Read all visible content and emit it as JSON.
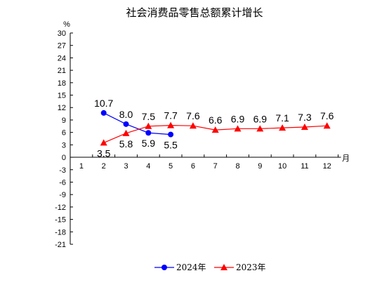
{
  "chart_data": {
    "type": "line",
    "title": "社会消费品零售总额累计增长",
    "ylabel": "%",
    "xlabel": "月",
    "ylim": [
      -21,
      30
    ],
    "y_ticks": [
      "30",
      "27",
      "24",
      "21",
      "18",
      "15",
      "12",
      "9",
      "6",
      "3",
      "0",
      "-3",
      "-6",
      "-9",
      "-12",
      "-15",
      "-18",
      "-21"
    ],
    "categories": [
      "1",
      "2",
      "3",
      "4",
      "5",
      "6",
      "7",
      "8",
      "9",
      "10",
      "11",
      "12"
    ],
    "grid": false,
    "legend_position": "bottom",
    "series": [
      {
        "name": "2024年",
        "color": "#0000ff",
        "marker": "circle",
        "x": [
          2,
          3,
          4,
          5
        ],
        "values": [
          10.7,
          8.0,
          5.9,
          5.5
        ],
        "labels": [
          "10.7",
          "8.0",
          "5.9",
          "5.5"
        ],
        "label_side": [
          "above",
          "above",
          "below",
          "below"
        ]
      },
      {
        "name": "2023年",
        "color": "#ff0000",
        "marker": "triangle",
        "x": [
          2,
          3,
          4,
          5,
          6,
          7,
          8,
          9,
          10,
          11,
          12
        ],
        "values": [
          3.5,
          5.8,
          7.5,
          7.7,
          7.6,
          6.6,
          6.9,
          6.9,
          7.1,
          7.3,
          7.6
        ],
        "labels": [
          "3.5",
          "5.8",
          "7.5",
          "7.7",
          "7.6",
          "6.6",
          "6.9",
          "6.9",
          "7.1",
          "7.3",
          "7.6"
        ],
        "label_side": [
          "below",
          "below",
          "above",
          "above",
          "above",
          "above",
          "above",
          "above",
          "above",
          "above",
          "above"
        ]
      }
    ]
  }
}
